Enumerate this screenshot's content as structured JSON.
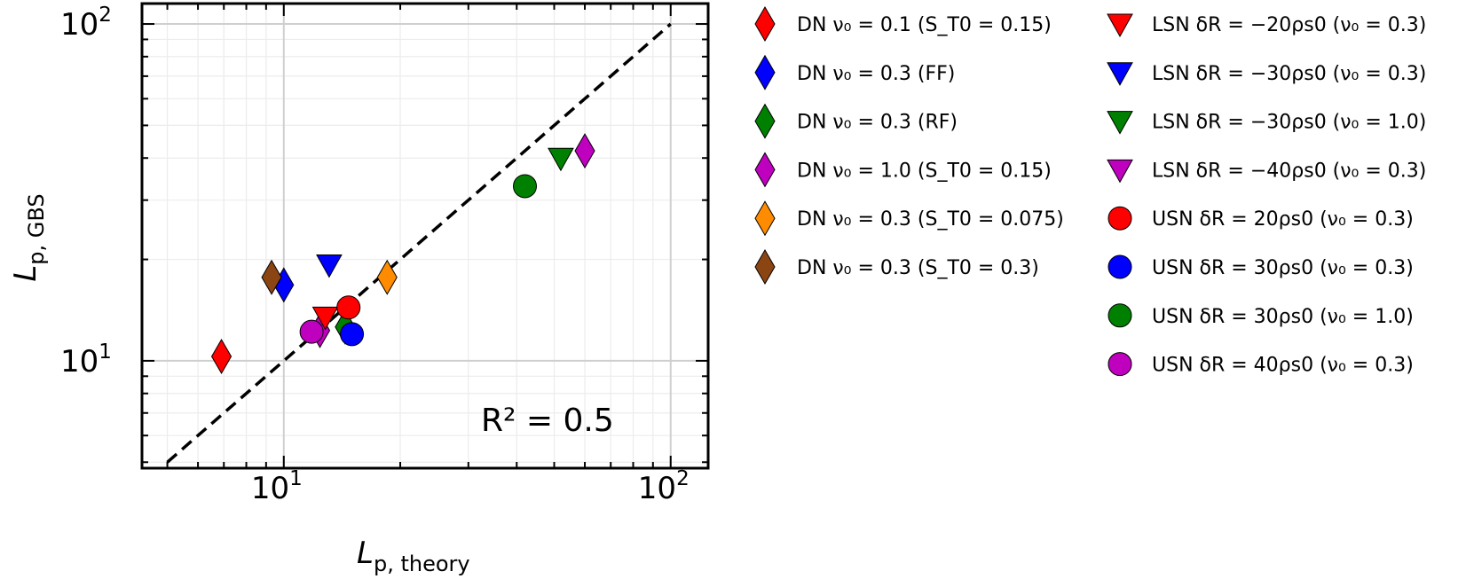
{
  "chart_data": {
    "type": "scatter",
    "xscale": "log",
    "yscale": "log",
    "xlim": [
      4.3,
      125
    ],
    "ylim": [
      4.8,
      115
    ],
    "xlabel_main": "L",
    "xlabel_sub": "p, theory",
    "ylabel_main": "L",
    "ylabel_sub": "p, GBS",
    "x_ticks": [
      {
        "base": "10",
        "exp": "1",
        "value": 10
      },
      {
        "base": "10",
        "exp": "2",
        "value": 100
      }
    ],
    "y_ticks": [
      {
        "base": "10",
        "exp": "1",
        "value": 10
      },
      {
        "base": "10",
        "exp": "2",
        "value": 100
      }
    ],
    "grid": true,
    "reference_line": {
      "style": "dashed",
      "color": "#000000",
      "x": [
        5,
        100
      ],
      "y": [
        5,
        100
      ]
    },
    "annotation": "R² = 0.5",
    "legend_position": "outside-right",
    "series": [
      {
        "label": "DN ν₀ = 0.1 (S_T0 = 0.15)",
        "marker": "diamond",
        "color": "#ff0000",
        "points": [
          [
            6.9,
            10.3
          ]
        ]
      },
      {
        "label": "DN ν₀ = 0.3 (FF)",
        "marker": "diamond",
        "color": "#0000ff",
        "points": [
          [
            10.0,
            16.8
          ]
        ]
      },
      {
        "label": "DN ν₀ = 0.3 (RF)",
        "marker": "diamond",
        "color": "#008000",
        "points": [
          [
            14.4,
            12.6
          ]
        ]
      },
      {
        "label": "DN ν₀ = 1.0 (S_T0 = 0.15)",
        "marker": "diamond",
        "color": "#bf00bf",
        "points": [
          [
            60,
            42
          ],
          [
            12.4,
            12.3
          ]
        ]
      },
      {
        "label": "DN ν₀ = 0.3 (S_T0 = 0.075)",
        "marker": "diamond",
        "color": "#ff8c00",
        "points": [
          [
            18.5,
            17.7
          ]
        ]
      },
      {
        "label": "DN ν₀ = 0.3 (S_T0 = 0.3)",
        "marker": "diamond",
        "color": "#8b4513",
        "points": [
          [
            9.3,
            17.7
          ]
        ]
      },
      {
        "label": "LSN δR = −20ρs0 (ν₀ = 0.3)",
        "marker": "triangle-down",
        "color": "#ff0000",
        "points": [
          [
            12.8,
            13.5
          ]
        ]
      },
      {
        "label": "LSN δR = −30ρs0 (ν₀ = 0.3)",
        "marker": "triangle-down",
        "color": "#0000ff",
        "points": [
          [
            13.1,
            19.3
          ]
        ]
      },
      {
        "label": "LSN δR = −30ρs0 (ν₀ = 1.0)",
        "marker": "triangle-down",
        "color": "#008000",
        "points": [
          [
            52,
            40
          ]
        ]
      },
      {
        "label": "LSN δR = −40ρs0 (ν₀ = 0.3)",
        "marker": "triangle-down",
        "color": "#bf00bf",
        "points": []
      },
      {
        "label": "USN δR = 20ρs0 (ν₀ = 0.3)",
        "marker": "circle",
        "color": "#ff0000",
        "points": [
          [
            14.7,
            14.4
          ]
        ]
      },
      {
        "label": "USN δR = 30ρs0 (ν₀ = 0.3)",
        "marker": "circle",
        "color": "#0000ff",
        "points": [
          [
            15.0,
            12.0
          ]
        ]
      },
      {
        "label": "USN δR = 30ρs0 (ν₀ = 1.0)",
        "marker": "circle",
        "color": "#008000",
        "points": [
          [
            42,
            33
          ]
        ]
      },
      {
        "label": "USN δR = 40ρs0 (ν₀ = 0.3)",
        "marker": "circle",
        "color": "#bf00bf",
        "points": [
          [
            11.8,
            12.2
          ]
        ]
      }
    ]
  }
}
